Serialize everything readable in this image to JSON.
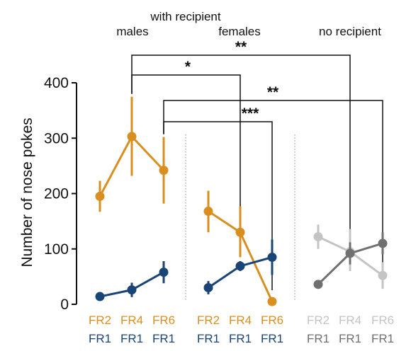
{
  "chart_data": {
    "type": "line",
    "ylabel": "Number of nose pokes",
    "ylim": [
      0,
      400
    ],
    "yticks": [
      0,
      100,
      200,
      300,
      400
    ],
    "groups": [
      {
        "headers": [
          "with recipient",
          "males"
        ],
        "series": [
          {
            "schedule": [
              "FR2",
              "FR4",
              "FR6"
            ],
            "color": "#D98F1F",
            "values": [
              195,
              303,
              242
            ],
            "err_low": [
              167,
              232,
              182
            ],
            "err_high": [
              223,
              375,
              302
            ]
          },
          {
            "schedule": [
              "FR1",
              "FR1",
              "FR1"
            ],
            "color": "#1A4476",
            "values": [
              14,
              26,
              58
            ],
            "err_low": [
              9,
              13,
              38
            ],
            "err_high": [
              19,
              39,
              78
            ]
          }
        ]
      },
      {
        "headers": [
          "females"
        ],
        "series": [
          {
            "schedule": [
              "FR2",
              "FR4",
              "FR6"
            ],
            "color": "#D98F1F",
            "values": [
              168,
              130,
              5
            ],
            "err_low": [
              130,
              85,
              1
            ],
            "err_high": [
              205,
              177,
              9
            ]
          },
          {
            "schedule": [
              "FR1",
              "FR1",
              "FR1"
            ],
            "color": "#1A4476",
            "values": [
              30,
              69,
              85
            ],
            "err_low": [
              18,
              60,
              53
            ],
            "err_high": [
              42,
              78,
              117
            ]
          }
        ]
      },
      {
        "headers": [
          "no recipient"
        ],
        "series": [
          {
            "schedule": [
              "FR2",
              "FR4",
              "FR6"
            ],
            "color": "#C4C4C4",
            "values": [
              122,
              95,
              52
            ],
            "err_low": [
              100,
              60,
              28
            ],
            "err_high": [
              144,
              136,
              76
            ]
          },
          {
            "schedule": [
              "FR1",
              "FR1",
              "FR1"
            ],
            "color": "#707070",
            "values": [
              36,
              92,
              110
            ],
            "err_low": [
              33,
              72,
              90
            ],
            "err_high": [
              39,
              112,
              130
            ]
          }
        ]
      }
    ],
    "comparisons": [
      {
        "label": "**",
        "from": [
          0,
          1
        ],
        "to": [
          2,
          1
        ]
      },
      {
        "label": "*",
        "from": [
          0,
          1
        ],
        "to": [
          1,
          1
        ]
      },
      {
        "label": "**",
        "from": [
          0,
          2
        ],
        "to": [
          2,
          2
        ]
      },
      {
        "label": "***",
        "from": [
          0,
          2
        ],
        "to": [
          1,
          2
        ]
      }
    ]
  }
}
